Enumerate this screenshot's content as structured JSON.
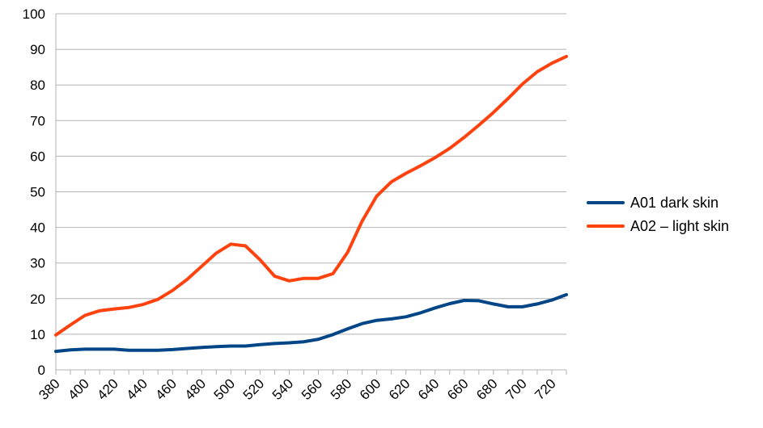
{
  "chart_data": {
    "type": "line",
    "title": "",
    "xlabel": "",
    "ylabel": "",
    "x": [
      380,
      390,
      400,
      410,
      420,
      430,
      440,
      450,
      460,
      470,
      480,
      490,
      500,
      510,
      520,
      530,
      540,
      550,
      560,
      570,
      580,
      590,
      600,
      610,
      620,
      630,
      640,
      650,
      660,
      670,
      680,
      690,
      700,
      710,
      720,
      730
    ],
    "x_tick_labels": [
      "380",
      "400",
      "420",
      "440",
      "460",
      "480",
      "500",
      "520",
      "540",
      "560",
      "580",
      "600",
      "620",
      "640",
      "660",
      "680",
      "700",
      "720"
    ],
    "ylim": [
      0,
      100
    ],
    "y_ticks": [
      0,
      10,
      20,
      30,
      40,
      50,
      60,
      70,
      80,
      90,
      100
    ],
    "grid": "horizontal",
    "legend_position": "right",
    "series": [
      {
        "name": "A01 dark skin",
        "color": "#004586",
        "values": [
          5.2,
          5.6,
          5.8,
          5.8,
          5.8,
          5.5,
          5.5,
          5.5,
          5.7,
          6.0,
          6.3,
          6.5,
          6.7,
          6.7,
          7.1,
          7.4,
          7.6,
          7.9,
          8.6,
          9.9,
          11.5,
          13.0,
          13.9,
          14.3,
          14.9,
          16.0,
          17.4,
          18.6,
          19.5,
          19.4,
          18.5,
          17.7,
          17.7,
          18.5,
          19.6,
          21.1
        ]
      },
      {
        "name": "A02 – light skin",
        "color": "#ff420e",
        "values": [
          9.8,
          12.6,
          15.3,
          16.6,
          17.1,
          17.5,
          18.4,
          19.8,
          22.3,
          25.4,
          29.1,
          32.8,
          35.3,
          34.8,
          30.9,
          26.3,
          25.0,
          25.7,
          25.7,
          27.0,
          33.0,
          41.8,
          48.8,
          52.8,
          55.2,
          57.3,
          59.6,
          62.2,
          65.3,
          68.7,
          72.3,
          76.2,
          80.3,
          83.7,
          86.1,
          88.0
        ]
      }
    ]
  }
}
